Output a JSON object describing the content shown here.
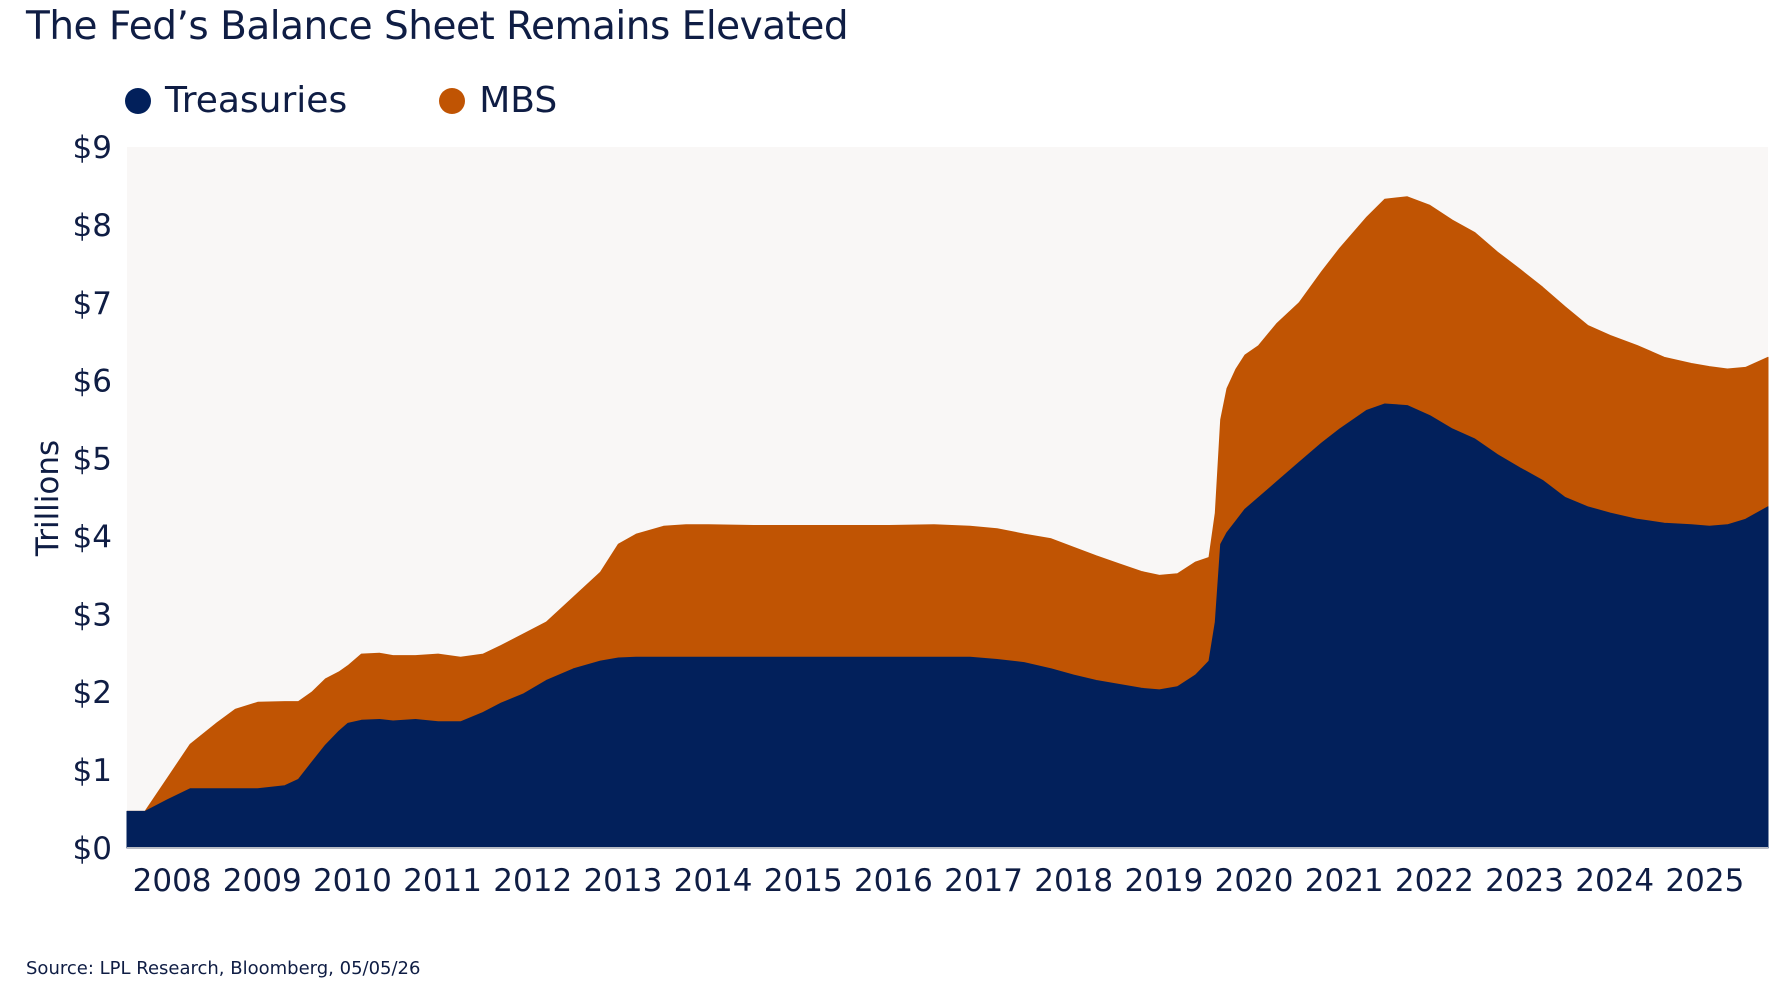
{
  "chart_data": {
    "type": "area",
    "stacked": true,
    "title": "The Fed’s Balance Sheet Remains Elevated",
    "ylabel": "Trillions",
    "xlabel": "",
    "ylim": [
      0,
      9
    ],
    "xlim": [
      2007.55,
      2025.75
    ],
    "grid": false,
    "legend_position": "top-left",
    "y_ticks": [
      {
        "value": 0,
        "label": "$0"
      },
      {
        "value": 1,
        "label": "$1"
      },
      {
        "value": 2,
        "label": "$2"
      },
      {
        "value": 3,
        "label": "$3"
      },
      {
        "value": 4,
        "label": "$4"
      },
      {
        "value": 5,
        "label": "$5"
      },
      {
        "value": 6,
        "label": "$6"
      },
      {
        "value": 7,
        "label": "$7"
      },
      {
        "value": 8,
        "label": "$8"
      },
      {
        "value": 9,
        "label": "$9"
      }
    ],
    "x_ticks": [
      {
        "value": 2008.05,
        "label": "2008"
      },
      {
        "value": 2009.05,
        "label": "2009"
      },
      {
        "value": 2010.05,
        "label": "2010"
      },
      {
        "value": 2011.05,
        "label": "2011"
      },
      {
        "value": 2012.05,
        "label": "2012"
      },
      {
        "value": 2013.05,
        "label": "2013"
      },
      {
        "value": 2014.05,
        "label": "2014"
      },
      {
        "value": 2015.05,
        "label": "2015"
      },
      {
        "value": 2016.05,
        "label": "2016"
      },
      {
        "value": 2017.05,
        "label": "2017"
      },
      {
        "value": 2018.05,
        "label": "2018"
      },
      {
        "value": 2019.05,
        "label": "2019"
      },
      {
        "value": 2020.05,
        "label": "2020"
      },
      {
        "value": 2021.05,
        "label": "2021"
      },
      {
        "value": 2022.05,
        "label": "2022"
      },
      {
        "value": 2023.05,
        "label": "2023"
      },
      {
        "value": 2024.05,
        "label": "2024"
      },
      {
        "value": 2025.05,
        "label": "2025"
      }
    ],
    "x": [
      2007.55,
      2007.75,
      2008.0,
      2008.25,
      2008.55,
      2008.75,
      2009.0,
      2009.3,
      2009.45,
      2009.6,
      2009.75,
      2009.9,
      2010.0,
      2010.15,
      2010.35,
      2010.5,
      2010.75,
      2011.0,
      2011.25,
      2011.5,
      2011.7,
      2011.95,
      2012.2,
      2012.5,
      2012.8,
      2013.0,
      2013.2,
      2013.5,
      2013.75,
      2014.0,
      2014.5,
      2015.0,
      2015.5,
      2016.0,
      2016.5,
      2016.9,
      2017.2,
      2017.5,
      2017.8,
      2018.05,
      2018.3,
      2018.55,
      2018.8,
      2019.0,
      2019.2,
      2019.4,
      2019.55,
      2019.62,
      2019.68,
      2019.75,
      2019.85,
      2019.95,
      2020.1,
      2020.3,
      2020.55,
      2020.8,
      2021.0,
      2021.3,
      2021.5,
      2021.75,
      2022.0,
      2022.25,
      2022.5,
      2022.75,
      2023.0,
      2023.25,
      2023.5,
      2023.75,
      2024.0,
      2024.3,
      2024.6,
      2024.9,
      2025.1,
      2025.3,
      2025.5,
      2025.75
    ],
    "series": [
      {
        "name": "Treasuries",
        "color": "#02205b",
        "values": [
          0.47,
          0.47,
          0.62,
          0.76,
          0.76,
          0.76,
          0.76,
          0.8,
          0.88,
          1.1,
          1.32,
          1.5,
          1.6,
          1.64,
          1.65,
          1.63,
          1.65,
          1.62,
          1.62,
          1.74,
          1.86,
          1.98,
          2.15,
          2.3,
          2.4,
          2.44,
          2.45,
          2.45,
          2.45,
          2.45,
          2.45,
          2.45,
          2.45,
          2.45,
          2.45,
          2.45,
          2.42,
          2.38,
          2.3,
          2.22,
          2.15,
          2.1,
          2.05,
          2.03,
          2.07,
          2.22,
          2.4,
          2.9,
          3.9,
          4.05,
          4.2,
          4.35,
          4.5,
          4.7,
          4.95,
          5.2,
          5.38,
          5.62,
          5.7,
          5.68,
          5.55,
          5.38,
          5.25,
          5.05,
          4.88,
          4.72,
          4.5,
          4.38,
          4.3,
          4.22,
          4.17,
          4.15,
          4.13,
          4.15,
          4.22,
          4.38
        ]
      },
      {
        "name": "MBS",
        "color": "#c05403",
        "values": [
          0.0,
          0.0,
          0.28,
          0.57,
          0.85,
          1.02,
          1.11,
          1.08,
          1.0,
          0.9,
          0.85,
          0.76,
          0.74,
          0.85,
          0.85,
          0.84,
          0.82,
          0.87,
          0.83,
          0.75,
          0.74,
          0.77,
          0.75,
          0.92,
          1.14,
          1.46,
          1.58,
          1.68,
          1.7,
          1.7,
          1.69,
          1.69,
          1.69,
          1.69,
          1.7,
          1.68,
          1.68,
          1.65,
          1.67,
          1.64,
          1.6,
          1.55,
          1.5,
          1.47,
          1.45,
          1.45,
          1.33,
          1.4,
          1.6,
          1.85,
          1.95,
          1.98,
          1.95,
          2.03,
          2.05,
          2.2,
          2.32,
          2.48,
          2.63,
          2.68,
          2.7,
          2.68,
          2.65,
          2.6,
          2.55,
          2.48,
          2.45,
          2.33,
          2.28,
          2.23,
          2.13,
          2.07,
          2.05,
          2.0,
          1.95,
          1.92
        ]
      }
    ],
    "source": "Source: LPL Research, Bloomberg, 05/05/26"
  }
}
